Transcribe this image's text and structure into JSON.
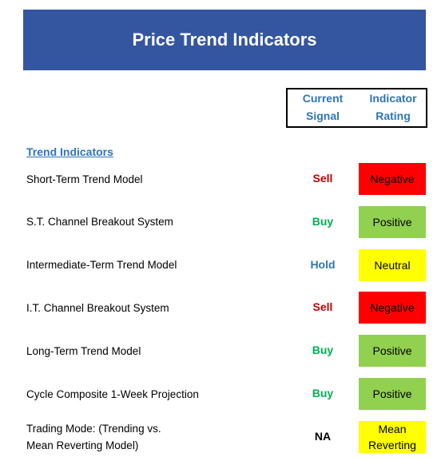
{
  "header": {
    "title": "Price Trend Indicators"
  },
  "columns": {
    "signal": [
      "Current",
      "Signal"
    ],
    "rating": [
      "Indicator",
      "Rating"
    ]
  },
  "section": {
    "title": "Trend Indicators"
  },
  "rows": [
    {
      "label": [
        "Short-Term Trend Model"
      ],
      "signal": "Sell",
      "signal_color": "#c00000",
      "rating": [
        "Negative"
      ],
      "rating_color": "#ff0000"
    },
    {
      "label": [
        "S.T. Channel Breakout System"
      ],
      "signal": "Buy",
      "signal_color": "#00b050",
      "rating": [
        "Positive"
      ],
      "rating_color": "#92d050"
    },
    {
      "label": [
        "Intermediate-Term Trend Model"
      ],
      "signal": "Hold",
      "signal_color": "#2e75b6",
      "rating": [
        "Neutral"
      ],
      "rating_color": "#ffff00"
    },
    {
      "label": [
        "I.T. Channel Breakout System"
      ],
      "signal": "Sell",
      "signal_color": "#c00000",
      "rating": [
        "Negative"
      ],
      "rating_color": "#ff0000"
    },
    {
      "label": [
        "Long-Term Trend Model"
      ],
      "signal": "Buy",
      "signal_color": "#00b050",
      "rating": [
        "Positive"
      ],
      "rating_color": "#92d050"
    },
    {
      "label": [
        "Cycle Composite 1-Week Projection"
      ],
      "signal": "Buy",
      "signal_color": "#00b050",
      "rating": [
        "Positive"
      ],
      "rating_color": "#92d050"
    },
    {
      "label": [
        "Trading Mode: (Trending vs.",
        "Mean Reverting Model)"
      ],
      "signal": "NA",
      "signal_color": "#000000",
      "rating": [
        "Mean",
        "Reverting"
      ],
      "rating_color": "#ffff00"
    }
  ]
}
